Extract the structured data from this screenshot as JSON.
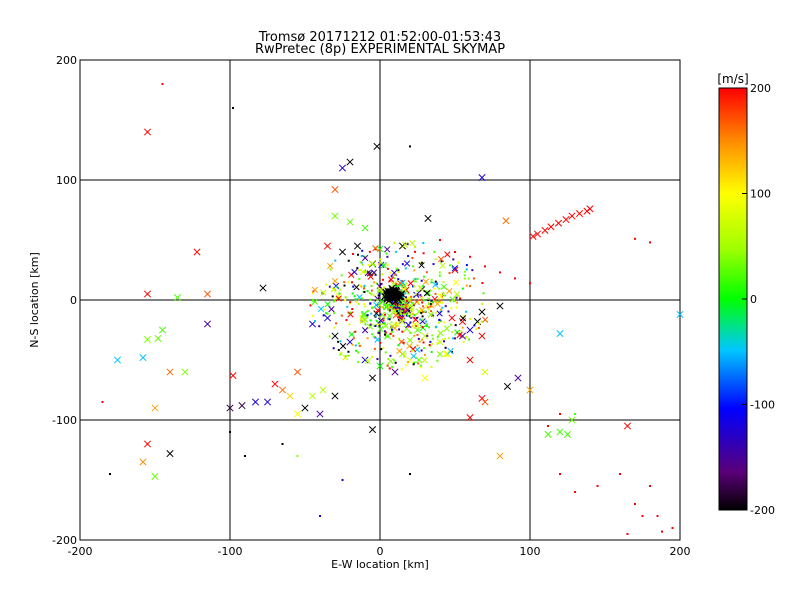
{
  "chart_data": {
    "type": "scatter",
    "title": "Tromsø 20171212 01:52:00-01:53:43",
    "subtitle": "RwPretec (8p) EXPERIMENTAL SKYMAP",
    "xlabel": "E-W location [km]",
    "ylabel": "N-S location [km]",
    "xlim": [
      -200,
      200
    ],
    "ylim": [
      -200,
      200
    ],
    "xticks": [
      -200,
      -100,
      0,
      100,
      200
    ],
    "yticks": [
      -200,
      -100,
      0,
      100,
      200
    ],
    "grid_lines": [
      -100,
      0,
      100
    ],
    "colorbar": {
      "label": "[m/s]",
      "range": [
        -200,
        200
      ],
      "ticks": [
        200,
        100,
        0,
        -100,
        -200
      ],
      "colormap": "rainbow (black-purple-blue-cyan-green-yellow-orange-red)"
    },
    "points": [
      {
        "x": 8,
        "y": 5,
        "v": -200,
        "m": "x"
      },
      {
        "x": 10,
        "y": 3,
        "v": -200,
        "m": "x"
      },
      {
        "x": 12,
        "y": 6,
        "v": -200,
        "m": "x"
      },
      {
        "x": 6,
        "y": 2,
        "v": -200,
        "m": "x"
      },
      {
        "x": 14,
        "y": 4,
        "v": -200,
        "m": "x"
      },
      {
        "x": 9,
        "y": 8,
        "v": -200,
        "m": "x"
      },
      {
        "x": 11,
        "y": 1,
        "v": -200,
        "m": "x"
      },
      {
        "x": 7,
        "y": 7,
        "v": -200,
        "m": "x"
      },
      {
        "x": 13,
        "y": 2,
        "v": -200,
        "m": "x"
      },
      {
        "x": 5,
        "y": 5,
        "v": -200,
        "m": "x"
      },
      {
        "x": -155,
        "y": 140,
        "v": 200,
        "m": "x"
      },
      {
        "x": -145,
        "y": 180,
        "v": 200,
        "m": "."
      },
      {
        "x": -98,
        "y": 160,
        "v": -200,
        "m": "."
      },
      {
        "x": -20,
        "y": 115,
        "v": -200,
        "m": "x"
      },
      {
        "x": -2,
        "y": 128,
        "v": -200,
        "m": "x"
      },
      {
        "x": -25,
        "y": 110,
        "v": -120,
        "m": "x"
      },
      {
        "x": 20,
        "y": 128,
        "v": -200,
        "m": "."
      },
      {
        "x": 68,
        "y": 102,
        "v": -120,
        "m": "x"
      },
      {
        "x": -30,
        "y": 92,
        "v": 170,
        "m": "x"
      },
      {
        "x": 102,
        "y": 53,
        "v": 200,
        "m": "x"
      },
      {
        "x": 105,
        "y": 55,
        "v": 200,
        "m": "x"
      },
      {
        "x": 110,
        "y": 58,
        "v": 200,
        "m": "x"
      },
      {
        "x": 114,
        "y": 61,
        "v": 200,
        "m": "x"
      },
      {
        "x": 119,
        "y": 64,
        "v": 200,
        "m": "x"
      },
      {
        "x": 124,
        "y": 67,
        "v": 200,
        "m": "x"
      },
      {
        "x": 128,
        "y": 70,
        "v": 200,
        "m": "x"
      },
      {
        "x": 133,
        "y": 72,
        "v": 200,
        "m": "x"
      },
      {
        "x": 138,
        "y": 74,
        "v": 200,
        "m": "x"
      },
      {
        "x": 140,
        "y": 76,
        "v": 200,
        "m": "x"
      },
      {
        "x": 170,
        "y": 51,
        "v": 200,
        "m": "."
      },
      {
        "x": 180,
        "y": 48,
        "v": 200,
        "m": "."
      },
      {
        "x": 84,
        "y": 66,
        "v": 160,
        "m": "x"
      },
      {
        "x": 40,
        "y": 50,
        "v": 200,
        "m": "."
      },
      {
        "x": 50,
        "y": 40,
        "v": 200,
        "m": "."
      },
      {
        "x": 60,
        "y": 36,
        "v": 200,
        "m": "."
      },
      {
        "x": 70,
        "y": 28,
        "v": 200,
        "m": "."
      },
      {
        "x": 80,
        "y": 23,
        "v": 200,
        "m": "."
      },
      {
        "x": 90,
        "y": 18,
        "v": 200,
        "m": "."
      },
      {
        "x": 100,
        "y": 14,
        "v": 200,
        "m": "."
      },
      {
        "x": -122,
        "y": 40,
        "v": 200,
        "m": "x"
      },
      {
        "x": -155,
        "y": 5,
        "v": 200,
        "m": "x"
      },
      {
        "x": -115,
        "y": 5,
        "v": 170,
        "m": "x"
      },
      {
        "x": -135,
        "y": 2,
        "v": 20,
        "m": "x"
      },
      {
        "x": -78,
        "y": 10,
        "v": -200,
        "m": "x"
      },
      {
        "x": -145,
        "y": -25,
        "v": 20,
        "m": "x"
      },
      {
        "x": -148,
        "y": -32,
        "v": 30,
        "m": "x"
      },
      {
        "x": -155,
        "y": -33,
        "v": 40,
        "m": "x"
      },
      {
        "x": -115,
        "y": -20,
        "v": -150,
        "m": "x"
      },
      {
        "x": -175,
        "y": -50,
        "v": -50,
        "m": "x"
      },
      {
        "x": -158,
        "y": -48,
        "v": -50,
        "m": "x"
      },
      {
        "x": -140,
        "y": -60,
        "v": 160,
        "m": "x"
      },
      {
        "x": -130,
        "y": -60,
        "v": 40,
        "m": "x"
      },
      {
        "x": -150,
        "y": -90,
        "v": 140,
        "m": "x"
      },
      {
        "x": -155,
        "y": -120,
        "v": 200,
        "m": "x"
      },
      {
        "x": -158,
        "y": -135,
        "v": 150,
        "m": "x"
      },
      {
        "x": -140,
        "y": -128,
        "v": -200,
        "m": "x"
      },
      {
        "x": -150,
        "y": -147,
        "v": 30,
        "m": "x"
      },
      {
        "x": -180,
        "y": -145,
        "v": -200,
        "m": "."
      },
      {
        "x": -185,
        "y": -85,
        "v": 200,
        "m": "."
      },
      {
        "x": -100,
        "y": -90,
        "v": -180,
        "m": "x"
      },
      {
        "x": -92,
        "y": -88,
        "v": -180,
        "m": "x"
      },
      {
        "x": -98,
        "y": -63,
        "v": 200,
        "m": "x"
      },
      {
        "x": -70,
        "y": -70,
        "v": 200,
        "m": "x"
      },
      {
        "x": -65,
        "y": -75,
        "v": 160,
        "m": "x"
      },
      {
        "x": -55,
        "y": -60,
        "v": 170,
        "m": "x"
      },
      {
        "x": -60,
        "y": -80,
        "v": 120,
        "m": "x"
      },
      {
        "x": -50,
        "y": -90,
        "v": -200,
        "m": "x"
      },
      {
        "x": -55,
        "y": -95,
        "v": 100,
        "m": "x"
      },
      {
        "x": -40,
        "y": -95,
        "v": -150,
        "m": "x"
      },
      {
        "x": -30,
        "y": -80,
        "v": -200,
        "m": "x"
      },
      {
        "x": -38,
        "y": -75,
        "v": 60,
        "m": "x"
      },
      {
        "x": -45,
        "y": -80,
        "v": 60,
        "m": "x"
      },
      {
        "x": -83,
        "y": -85,
        "v": -120,
        "m": "x"
      },
      {
        "x": -75,
        "y": -85,
        "v": -120,
        "m": "x"
      },
      {
        "x": -5,
        "y": -108,
        "v": -200,
        "m": "x"
      },
      {
        "x": -65,
        "y": -120,
        "v": -200,
        "m": "."
      },
      {
        "x": -100,
        "y": -110,
        "v": -200,
        "m": "."
      },
      {
        "x": -90,
        "y": -130,
        "v": -200,
        "m": "."
      },
      {
        "x": -55,
        "y": -130,
        "v": 40,
        "m": "."
      },
      {
        "x": -25,
        "y": -150,
        "v": -120,
        "m": "."
      },
      {
        "x": -40,
        "y": -180,
        "v": -120,
        "m": "."
      },
      {
        "x": 20,
        "y": -145,
        "v": -200,
        "m": "."
      },
      {
        "x": -30,
        "y": 70,
        "v": 30,
        "m": "x"
      },
      {
        "x": -20,
        "y": 65,
        "v": 30,
        "m": "x"
      },
      {
        "x": -10,
        "y": 60,
        "v": 20,
        "m": "x"
      },
      {
        "x": -35,
        "y": 45,
        "v": 200,
        "m": "x"
      },
      {
        "x": -25,
        "y": 40,
        "v": -200,
        "m": "x"
      },
      {
        "x": -15,
        "y": 45,
        "v": -200,
        "m": "x"
      },
      {
        "x": -5,
        "y": 30,
        "v": -200,
        "m": "x"
      },
      {
        "x": 15,
        "y": 45,
        "v": -200,
        "m": "x"
      },
      {
        "x": 32,
        "y": 68,
        "v": -200,
        "m": "x"
      },
      {
        "x": 50,
        "y": 25,
        "v": 200,
        "m": "x"
      },
      {
        "x": 48,
        "y": -15,
        "v": 200,
        "m": "x"
      },
      {
        "x": 55,
        "y": -18,
        "v": 200,
        "m": "x"
      },
      {
        "x": 68,
        "y": -10,
        "v": -200,
        "m": "x"
      },
      {
        "x": 65,
        "y": -18,
        "v": -200,
        "m": "x"
      },
      {
        "x": 60,
        "y": -25,
        "v": -120,
        "m": "x"
      },
      {
        "x": 55,
        "y": -30,
        "v": -150,
        "m": "x"
      },
      {
        "x": 68,
        "y": -30,
        "v": 200,
        "m": "x"
      },
      {
        "x": 80,
        "y": -5,
        "v": -200,
        "m": "x"
      },
      {
        "x": 60,
        "y": -50,
        "v": 200,
        "m": "x"
      },
      {
        "x": 70,
        "y": -60,
        "v": 80,
        "m": "x"
      },
      {
        "x": 68,
        "y": -82,
        "v": 200,
        "m": "x"
      },
      {
        "x": 70,
        "y": -85,
        "v": 170,
        "m": "x"
      },
      {
        "x": 85,
        "y": -72,
        "v": -200,
        "m": "x"
      },
      {
        "x": 60,
        "y": -98,
        "v": 200,
        "m": "x"
      },
      {
        "x": 30,
        "y": -65,
        "v": 100,
        "m": "x"
      },
      {
        "x": 10,
        "y": -60,
        "v": -150,
        "m": "x"
      },
      {
        "x": 0,
        "y": -55,
        "v": 0,
        "m": "x"
      },
      {
        "x": -5,
        "y": -65,
        "v": -200,
        "m": "x"
      },
      {
        "x": -10,
        "y": -50,
        "v": -120,
        "m": "x"
      },
      {
        "x": 15,
        "y": -45,
        "v": 40,
        "m": "x"
      },
      {
        "x": 20,
        "y": -50,
        "v": 100,
        "m": "x"
      },
      {
        "x": -20,
        "y": -35,
        "v": -120,
        "m": "x"
      },
      {
        "x": -30,
        "y": -30,
        "v": -200,
        "m": "x"
      },
      {
        "x": -35,
        "y": -15,
        "v": -120,
        "m": "x"
      },
      {
        "x": -45,
        "y": -20,
        "v": -120,
        "m": "x"
      },
      {
        "x": 5,
        "y": -30,
        "v": 20,
        "m": "x"
      },
      {
        "x": 25,
        "y": -25,
        "v": 30,
        "m": "x"
      },
      {
        "x": 30,
        "y": -30,
        "v": 60,
        "m": "x"
      },
      {
        "x": 40,
        "y": -35,
        "v": 60,
        "m": "x"
      },
      {
        "x": 45,
        "y": -45,
        "v": 80,
        "m": "x"
      },
      {
        "x": 100,
        "y": -75,
        "v": 140,
        "m": "x"
      },
      {
        "x": 92,
        "y": -65,
        "v": -150,
        "m": "x"
      },
      {
        "x": 112,
        "y": -112,
        "v": 20,
        "m": "x"
      },
      {
        "x": 120,
        "y": -110,
        "v": 20,
        "m": "x"
      },
      {
        "x": 125,
        "y": -112,
        "v": 20,
        "m": "x"
      },
      {
        "x": 128,
        "y": -100,
        "v": 30,
        "m": "x"
      },
      {
        "x": 120,
        "y": -95,
        "v": 200,
        "m": "."
      },
      {
        "x": 112,
        "y": -105,
        "v": 200,
        "m": "."
      },
      {
        "x": 165,
        "y": -105,
        "v": 200,
        "m": "x"
      },
      {
        "x": 80,
        "y": -130,
        "v": 140,
        "m": "x"
      },
      {
        "x": 120,
        "y": -145,
        "v": 200,
        "m": "."
      },
      {
        "x": 130,
        "y": -160,
        "v": 200,
        "m": "."
      },
      {
        "x": 145,
        "y": -155,
        "v": 200,
        "m": "."
      },
      {
        "x": 160,
        "y": -145,
        "v": 200,
        "m": "."
      },
      {
        "x": 170,
        "y": -170,
        "v": 200,
        "m": "."
      },
      {
        "x": 175,
        "y": -180,
        "v": 200,
        "m": "."
      },
      {
        "x": 165,
        "y": -195,
        "v": 200,
        "m": "."
      },
      {
        "x": 185,
        "y": -180,
        "v": 200,
        "m": "."
      },
      {
        "x": 195,
        "y": -190,
        "v": 200,
        "m": "."
      },
      {
        "x": 188,
        "y": -193,
        "v": 200,
        "m": "."
      },
      {
        "x": 180,
        "y": -155,
        "v": 200,
        "m": "."
      },
      {
        "x": 120,
        "y": -28,
        "v": -50,
        "m": "x"
      },
      {
        "x": 200,
        "y": -12,
        "v": -50,
        "m": "x"
      },
      {
        "x": 130,
        "y": -95,
        "v": 20,
        "m": "."
      }
    ]
  }
}
